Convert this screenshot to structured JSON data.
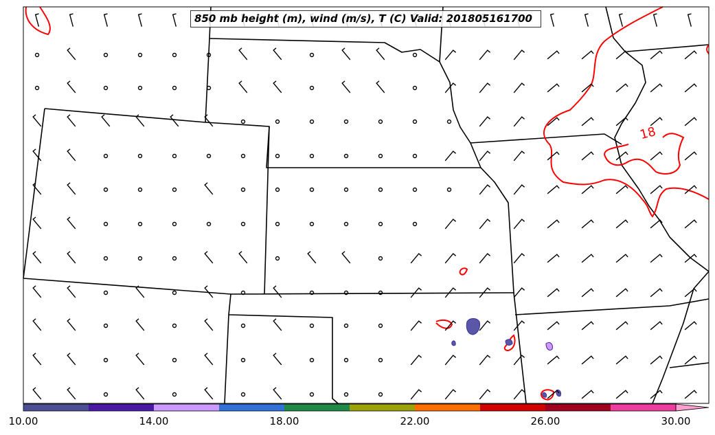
{
  "title": "850 mb height (m), wind (m/s), T (C) Valid: 201805161700",
  "isotherm_label": "18",
  "colors": {
    "isotherm": "#ff0000",
    "boundaries": "#000000",
    "wind_barbs": "#000000"
  },
  "colorbar": {
    "tick_labels": [
      "10.00",
      "14.00",
      "18.00",
      "22.00",
      "26.00",
      "30.00"
    ],
    "bins": [
      {
        "from": 10,
        "to": 12,
        "color": "#4b4f93"
      },
      {
        "from": 12,
        "to": 14,
        "color": "#4a1aa6"
      },
      {
        "from": 14,
        "to": 16,
        "color": "#cc99ff"
      },
      {
        "from": 16,
        "to": 18,
        "color": "#3271d8"
      },
      {
        "from": 18,
        "to": 20,
        "color": "#1f8a47"
      },
      {
        "from": 20,
        "to": 22,
        "color": "#9ba20c"
      },
      {
        "from": 22,
        "to": 24,
        "color": "#ff6f00"
      },
      {
        "from": 24,
        "to": 26,
        "color": "#d40000"
      },
      {
        "from": 26,
        "to": 28,
        "color": "#a1001f"
      },
      {
        "from": 28,
        "to": 30,
        "color": "#ee3c9f"
      },
      {
        "from": 30,
        "to": null,
        "color": "#ff9fd0"
      }
    ],
    "extend": "max"
  }
}
